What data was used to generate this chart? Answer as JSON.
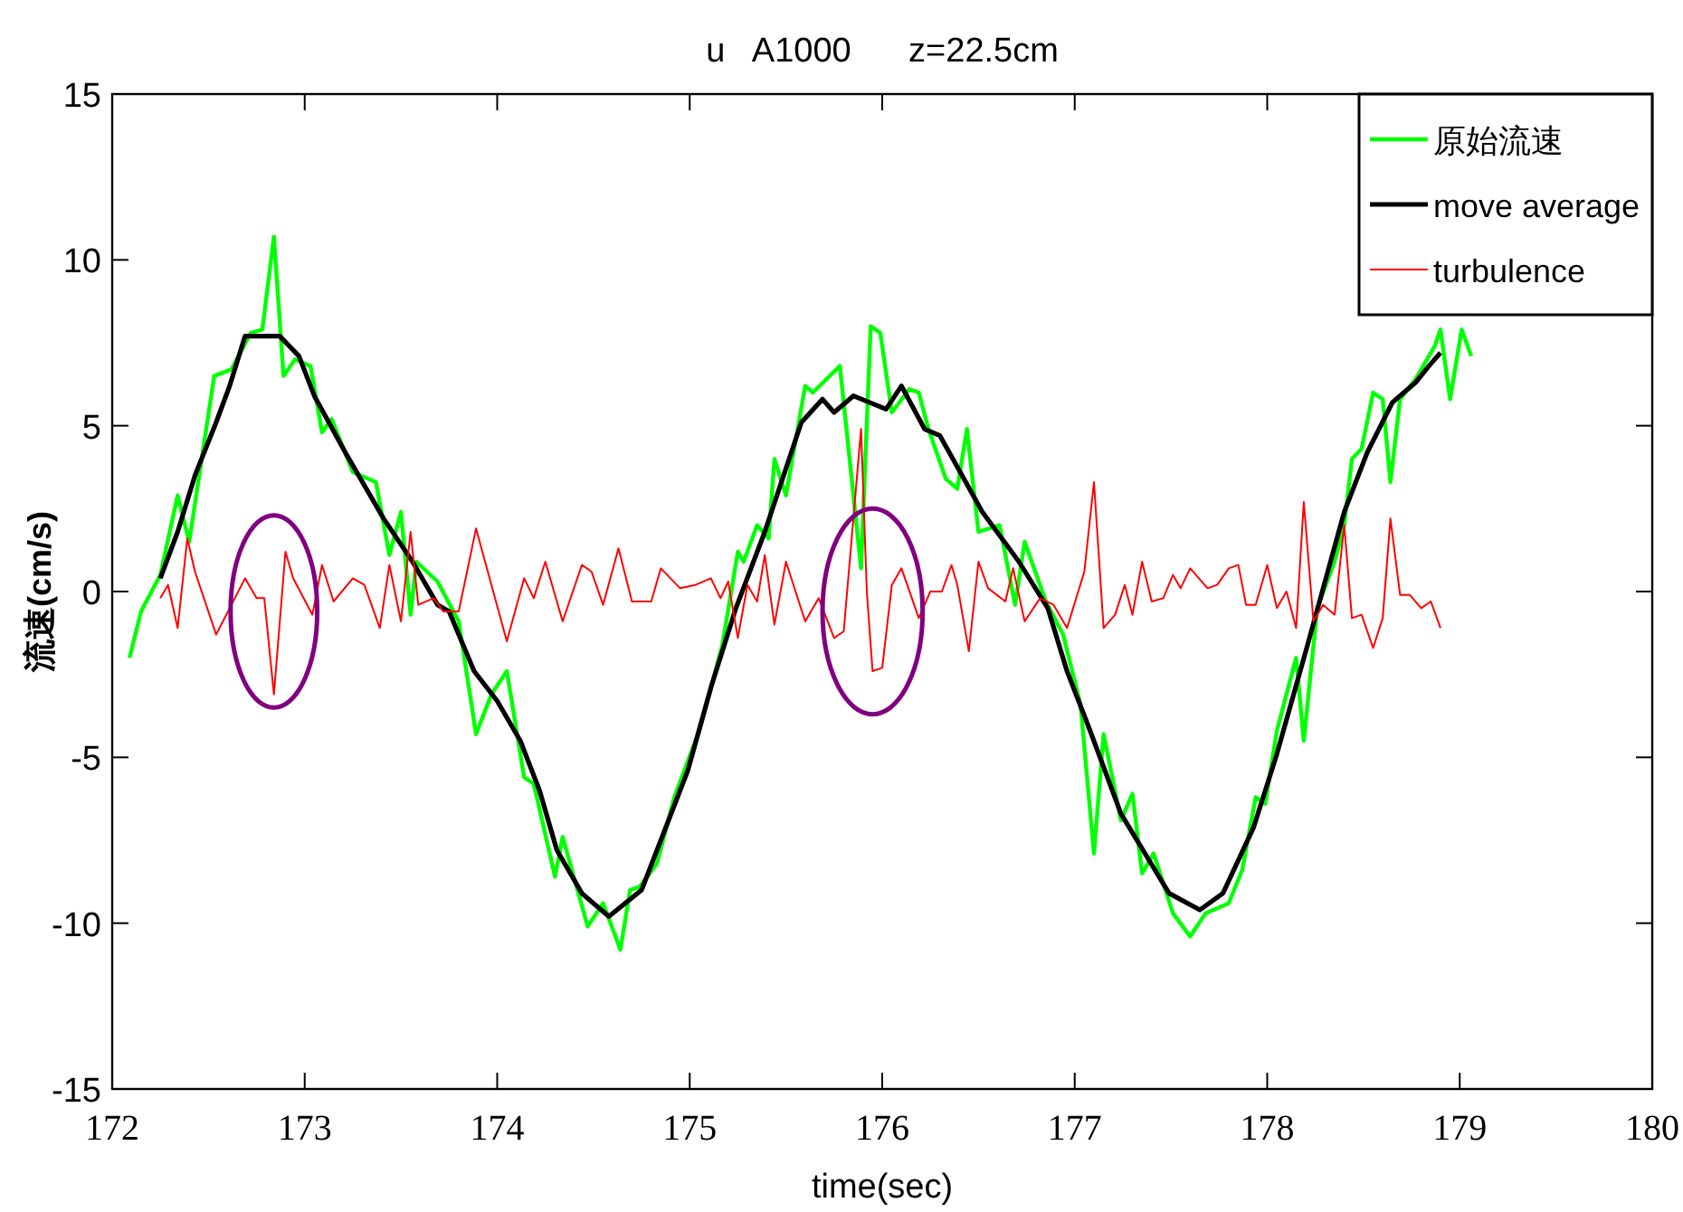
{
  "chart_data": {
    "type": "line",
    "title": "u   A1000      z=22.5cm",
    "xlabel": "time(sec)",
    "ylabel": "流速(cm/s)",
    "xlim": [
      172,
      180
    ],
    "xticks": [
      172,
      173,
      174,
      175,
      176,
      177,
      178,
      179,
      180
    ],
    "ylim": [
      -15,
      15
    ],
    "yticks": [
      -15,
      -10,
      -5,
      0,
      5,
      10,
      15
    ],
    "grid": false,
    "legend": "top right",
    "marker": "none",
    "line_style": "solid",
    "series": [
      {
        "name": "原始流速",
        "color": "#00ff00",
        "x": [
          172.09,
          172.15,
          172.25,
          172.34,
          172.4,
          172.53,
          172.62,
          172.72,
          172.78,
          172.84,
          172.89,
          172.95,
          173.03,
          173.09,
          173.14,
          173.25,
          173.37,
          173.44,
          173.5,
          173.55,
          173.58,
          173.69,
          173.8,
          173.89,
          173.97,
          174.05,
          174.14,
          174.19,
          174.3,
          174.34,
          174.47,
          174.55,
          174.64,
          174.69,
          174.74,
          174.83,
          174.92,
          175.05,
          175.17,
          175.25,
          175.28,
          175.35,
          175.41,
          175.44,
          175.5,
          175.6,
          175.64,
          175.78,
          175.89,
          175.94,
          175.99,
          176.05,
          176.14,
          176.19,
          176.24,
          176.33,
          176.39,
          176.44,
          176.5,
          176.61,
          176.69,
          176.74,
          176.85,
          176.94,
          177.03,
          177.1,
          177.15,
          177.24,
          177.3,
          177.35,
          177.41,
          177.51,
          177.6,
          177.68,
          177.8,
          177.87,
          177.94,
          177.99,
          178.05,
          178.15,
          178.19,
          178.26,
          178.35,
          178.4,
          178.44,
          178.49,
          178.55,
          178.6,
          178.64,
          178.69,
          178.77,
          178.87,
          178.9,
          178.95,
          179.01,
          179.06
        ],
        "values": [
          -2.0,
          -0.6,
          0.5,
          2.9,
          1.5,
          6.5,
          6.7,
          7.8,
          7.9,
          10.7,
          6.5,
          7.0,
          6.8,
          4.8,
          5.2,
          3.6,
          3.3,
          1.1,
          2.4,
          -0.7,
          0.9,
          0.3,
          -0.9,
          -4.3,
          -3.1,
          -2.4,
          -5.6,
          -5.8,
          -8.6,
          -7.4,
          -10.1,
          -9.4,
          -10.8,
          -9.0,
          -8.9,
          -8.2,
          -6.2,
          -4.2,
          -1.6,
          1.2,
          0.9,
          2.0,
          1.6,
          4.0,
          2.9,
          6.2,
          6.0,
          6.8,
          0.7,
          8.0,
          7.8,
          5.4,
          6.1,
          6.0,
          4.9,
          3.4,
          3.1,
          4.9,
          1.8,
          2.0,
          -0.4,
          1.5,
          -0.3,
          -1.3,
          -3.4,
          -7.9,
          -4.3,
          -6.9,
          -6.1,
          -8.5,
          -7.9,
          -9.7,
          -10.4,
          -9.7,
          -9.4,
          -8.4,
          -6.2,
          -6.4,
          -4.2,
          -2.0,
          -4.5,
          -0.5,
          0.9,
          2.0,
          4.0,
          4.3,
          6.0,
          5.8,
          3.3,
          5.8,
          6.4,
          7.4,
          7.9,
          5.8,
          7.9,
          7.1
        ]
      },
      {
        "name": "move average",
        "color": "#000000",
        "x": [
          172.25,
          172.34,
          172.43,
          172.54,
          172.61,
          172.69,
          172.87,
          172.97,
          173.05,
          173.22,
          173.41,
          173.56,
          173.69,
          173.75,
          173.88,
          174.0,
          174.12,
          174.22,
          174.31,
          174.44,
          174.58,
          174.75,
          174.83,
          174.99,
          175.11,
          175.24,
          175.39,
          175.58,
          175.69,
          175.75,
          175.85,
          176.02,
          176.1,
          176.22,
          176.3,
          176.52,
          176.71,
          176.86,
          176.96,
          177.08,
          177.24,
          177.49,
          177.65,
          177.77,
          177.93,
          178.05,
          178.21,
          178.4,
          178.52,
          178.65,
          178.77,
          178.84,
          178.9
        ],
        "values": [
          0.4,
          1.8,
          3.5,
          5.1,
          6.2,
          7.7,
          7.7,
          7.1,
          5.9,
          4.1,
          2.2,
          0.9,
          -0.4,
          -0.6,
          -2.4,
          -3.3,
          -4.5,
          -6.0,
          -7.8,
          -9.1,
          -9.8,
          -9.0,
          -7.8,
          -5.4,
          -2.9,
          -0.5,
          1.8,
          5.1,
          5.8,
          5.4,
          5.9,
          5.5,
          6.2,
          4.9,
          4.7,
          2.4,
          0.9,
          -0.5,
          -2.4,
          -4.2,
          -6.7,
          -9.1,
          -9.6,
          -9.1,
          -7.1,
          -4.9,
          -1.6,
          2.4,
          4.2,
          5.7,
          6.3,
          6.8,
          7.2
        ]
      },
      {
        "name": "turbulence",
        "color": "#ff0000",
        "x": [
          172.25,
          172.29,
          172.34,
          172.39,
          172.43,
          172.54,
          172.69,
          172.75,
          172.79,
          172.84,
          172.9,
          172.94,
          173.04,
          173.09,
          173.15,
          173.25,
          173.31,
          173.39,
          173.44,
          173.5,
          173.55,
          173.59,
          173.67,
          173.72,
          173.8,
          173.89,
          173.97,
          174.05,
          174.14,
          174.19,
          174.25,
          174.34,
          174.44,
          174.49,
          174.55,
          174.63,
          174.7,
          174.8,
          174.85,
          174.95,
          175.03,
          175.11,
          175.16,
          175.2,
          175.25,
          175.3,
          175.35,
          175.39,
          175.44,
          175.5,
          175.6,
          175.67,
          175.75,
          175.8,
          175.89,
          175.92,
          175.95,
          176.0,
          176.05,
          176.1,
          176.19,
          176.25,
          176.31,
          176.36,
          176.39,
          176.45,
          176.5,
          176.55,
          176.64,
          176.68,
          176.74,
          176.82,
          176.89,
          176.96,
          177.05,
          177.1,
          177.15,
          177.21,
          177.26,
          177.3,
          177.35,
          177.4,
          177.46,
          177.51,
          177.55,
          177.6,
          177.69,
          177.74,
          177.8,
          177.85,
          177.89,
          177.94,
          178.0,
          178.05,
          178.1,
          178.15,
          178.19,
          178.24,
          178.29,
          178.35,
          178.4,
          178.44,
          178.49,
          178.55,
          178.6,
          178.64,
          178.69,
          178.74,
          178.8,
          178.85,
          178.9
        ],
        "values": [
          -0.2,
          0.2,
          -1.1,
          1.6,
          0.6,
          -1.3,
          0.4,
          -0.2,
          -0.2,
          -3.1,
          1.2,
          0.4,
          -0.7,
          0.8,
          -0.3,
          0.4,
          0.2,
          -1.1,
          0.8,
          -0.9,
          1.8,
          -0.4,
          -0.2,
          -0.6,
          -0.6,
          1.9,
          0.2,
          -1.5,
          0.4,
          -0.2,
          0.9,
          -0.9,
          0.8,
          0.6,
          -0.4,
          1.3,
          -0.3,
          -0.3,
          0.7,
          0.1,
          0.2,
          0.4,
          -0.2,
          0.3,
          -1.4,
          0.2,
          -0.3,
          1.1,
          -1.0,
          0.9,
          -0.9,
          -0.2,
          -1.4,
          -1.2,
          4.9,
          0.0,
          -2.4,
          -2.3,
          0.2,
          0.7,
          -0.8,
          0.0,
          0.0,
          0.8,
          0.2,
          -1.8,
          0.9,
          0.1,
          -0.3,
          0.7,
          -0.9,
          -0.2,
          -0.4,
          -1.1,
          0.6,
          3.3,
          -1.1,
          -0.7,
          0.2,
          -0.7,
          0.9,
          -0.3,
          -0.2,
          0.5,
          0.1,
          0.7,
          0.1,
          0.2,
          0.7,
          0.8,
          -0.4,
          -0.4,
          0.8,
          -0.5,
          0.0,
          -1.1,
          2.7,
          -0.9,
          -0.4,
          -0.7,
          2.0,
          -0.8,
          -0.7,
          -1.7,
          -0.8,
          2.2,
          -0.1,
          -0.1,
          -0.5,
          -0.3,
          -1.1
        ]
      }
    ]
  }
}
